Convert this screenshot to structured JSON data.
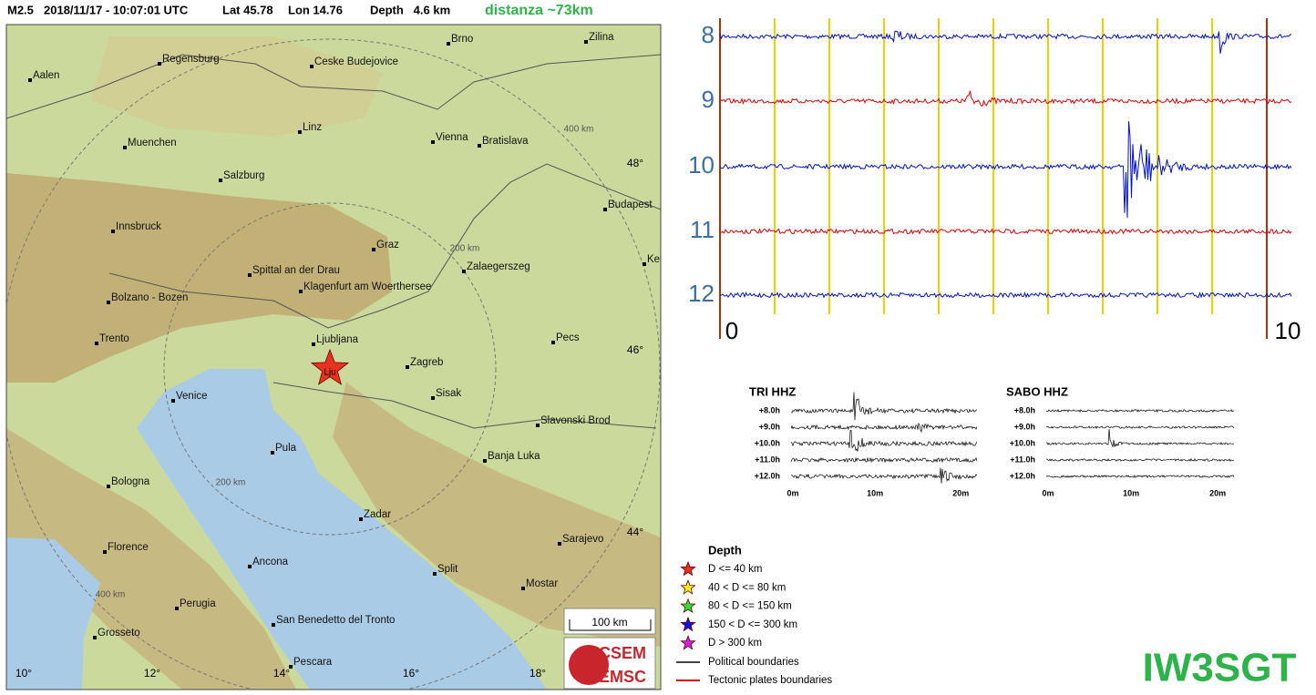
{
  "header": {
    "magnitude": "M2.5",
    "datetime": "2018/11/17 - 10:07:01 UTC",
    "lat": "Lat 45.78",
    "lon": "Lon 14.76",
    "depth": "Depth   4.6 km",
    "distance": "distanza ~73km"
  },
  "map": {
    "cities": [
      "Aalen",
      "Regensburg",
      "Ceske Budejovice",
      "Brno",
      "Zilina",
      "Linz",
      "Vienna",
      "Bratislava",
      "Muenchen",
      "Salzburg",
      "Budapest",
      "Innsbruck",
      "Graz",
      "Zalaegerszeg",
      "Ke",
      "Spittal an der Drau",
      "Klagenfurt am Woerthersee",
      "Bolzano - Bozen",
      "Trento",
      "Ljubljana",
      "Pecs",
      "Zagreb",
      "Venice",
      "Sisak",
      "Slavonski Brod",
      "Pula",
      "Banja Luka",
      "Bologna",
      "Zadar",
      "Sarajevo",
      "Florence",
      "Ancona",
      "Split",
      "Mostar",
      "Perugia",
      "San Benedetto del Tronto",
      "Grosseto",
      "Pescara"
    ],
    "latitude_labels": [
      "48°",
      "46°",
      "44°"
    ],
    "longitude_labels": [
      "10°",
      "12°",
      "14°",
      "16°",
      "18°"
    ],
    "distance_labels": [
      "400 km",
      "200 km",
      "200 km",
      "400 km"
    ],
    "epicenter_label": "Lju",
    "scale_label": "100 km",
    "logo": [
      "CSEM",
      "EMSC"
    ]
  },
  "seismogram": {
    "row_labels": [
      "8",
      "9",
      "10",
      "11",
      "12"
    ],
    "axis_labels": [
      "0",
      "10"
    ]
  },
  "helicorders": [
    {
      "title": "TRI HHZ",
      "hour_labels": [
        "+8.0h",
        "+9.0h",
        "+10.0h",
        "+11.0h",
        "+12.0h"
      ],
      "time_labels": [
        "0m",
        "10m",
        "20m"
      ]
    },
    {
      "title": "SABO HHZ",
      "hour_labels": [
        "+8.0h",
        "+9.0h",
        "+10.0h",
        "+11.0h",
        "+12.0h"
      ],
      "time_labels": [
        "0m",
        "10m",
        "20m"
      ]
    }
  ],
  "legend": {
    "title": "Depth",
    "items": [
      "D <= 40 km",
      "40 < D <= 80 km",
      "80 < D <= 150 km",
      "150 < D <= 300 km",
      "D > 300 km"
    ],
    "lines": [
      "Political boundaries",
      "Tectonic plates boundaries"
    ]
  },
  "callsign": "IW3SGT"
}
